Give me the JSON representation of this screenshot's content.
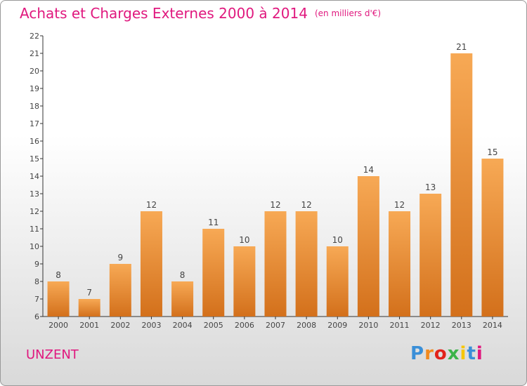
{
  "title": "Achats et Charges Externes 2000 à 2014",
  "subtitle": "(en milliers d'€)",
  "commune": "UNZENT",
  "logo": {
    "letters": [
      "P",
      "r",
      "o",
      "x",
      "i",
      "t",
      "i"
    ],
    "colors": [
      "#3a8fd8",
      "#f28a1e",
      "#e2231a",
      "#3cb44a",
      "#f7c600",
      "#3a8fd8",
      "#e0187e"
    ]
  },
  "colors": {
    "title": "#e0187e",
    "bar_light": "#f7a955",
    "bar_dark": "#d3701b",
    "axis": "#333333"
  },
  "chart_data": {
    "type": "bar",
    "categories": [
      "2000",
      "2001",
      "2002",
      "2003",
      "2004",
      "2005",
      "2006",
      "2007",
      "2008",
      "2009",
      "2010",
      "2011",
      "2012",
      "2013",
      "2014"
    ],
    "values": [
      8,
      7,
      9,
      12,
      8,
      11,
      10,
      12,
      12,
      10,
      14,
      12,
      13,
      21,
      15
    ],
    "title": "Achats et Charges Externes 2000 à 2014",
    "ylim": [
      6,
      22
    ],
    "yticks": [
      6,
      7,
      8,
      9,
      10,
      11,
      12,
      13,
      14,
      15,
      16,
      17,
      18,
      19,
      20,
      21,
      22
    ],
    "grid": false,
    "data_labels": true
  }
}
